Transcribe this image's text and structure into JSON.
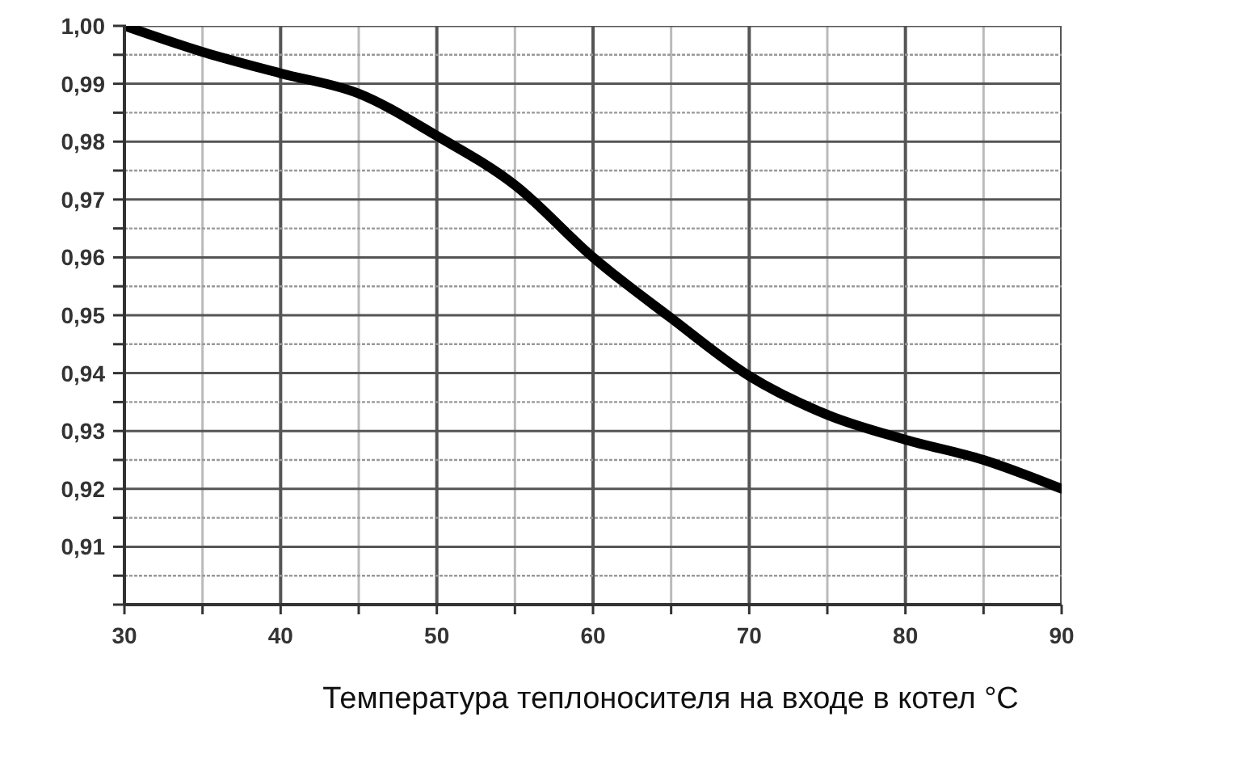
{
  "chart_data": {
    "type": "line",
    "xlabel": "Температура теплоносителя на входе в котел °C",
    "x": [
      30,
      35,
      40,
      45,
      50,
      55,
      60,
      65,
      70,
      75,
      80,
      85,
      90
    ],
    "series": [
      {
        "color": "#000000",
        "values": [
          1.0,
          0.9955,
          0.9918,
          0.9883,
          0.981,
          0.9725,
          0.96,
          0.9495,
          0.9395,
          0.9328,
          0.9285,
          0.925,
          0.92
        ]
      }
    ],
    "xlim": [
      30,
      90
    ],
    "xticks": [
      30,
      {
        "value": 35,
        "label": null
      },
      40,
      {
        "value": 45,
        "label": null
      },
      50,
      {
        "value": 55,
        "label": null
      },
      60,
      {
        "value": 65,
        "label": null
      },
      70,
      {
        "value": 75,
        "label": null
      },
      80,
      {
        "value": 85,
        "label": null
      },
      90
    ],
    "ylim": [
      0.9,
      1.0
    ],
    "yticks": [
      {
        "value": 0.9,
        "label": null
      },
      {
        "value": 0.905,
        "label": null
      },
      {
        "value": 0.91,
        "label": "0,91"
      },
      {
        "value": 0.915,
        "label": null
      },
      {
        "value": 0.92,
        "label": "0,92"
      },
      {
        "value": 0.925,
        "label": null
      },
      {
        "value": 0.93,
        "label": "0,93"
      },
      {
        "value": 0.935,
        "label": null
      },
      {
        "value": 0.94,
        "label": "0,94"
      },
      {
        "value": 0.945,
        "label": null
      },
      {
        "value": 0.95,
        "label": "0,95"
      },
      {
        "value": 0.955,
        "label": null
      },
      {
        "value": 0.96,
        "label": "0,96"
      },
      {
        "value": 0.965,
        "label": null
      },
      {
        "value": 0.97,
        "label": "0,97"
      },
      {
        "value": 0.975,
        "label": null
      },
      {
        "value": 0.98,
        "label": "0,98"
      },
      {
        "value": 0.985,
        "label": null
      },
      {
        "value": 0.99,
        "label": "0,99"
      },
      {
        "value": 0.995,
        "label": null
      },
      {
        "value": 1.0,
        "label": "1,00"
      }
    ],
    "grid": true,
    "marker": "none",
    "line_style": "solid"
  }
}
